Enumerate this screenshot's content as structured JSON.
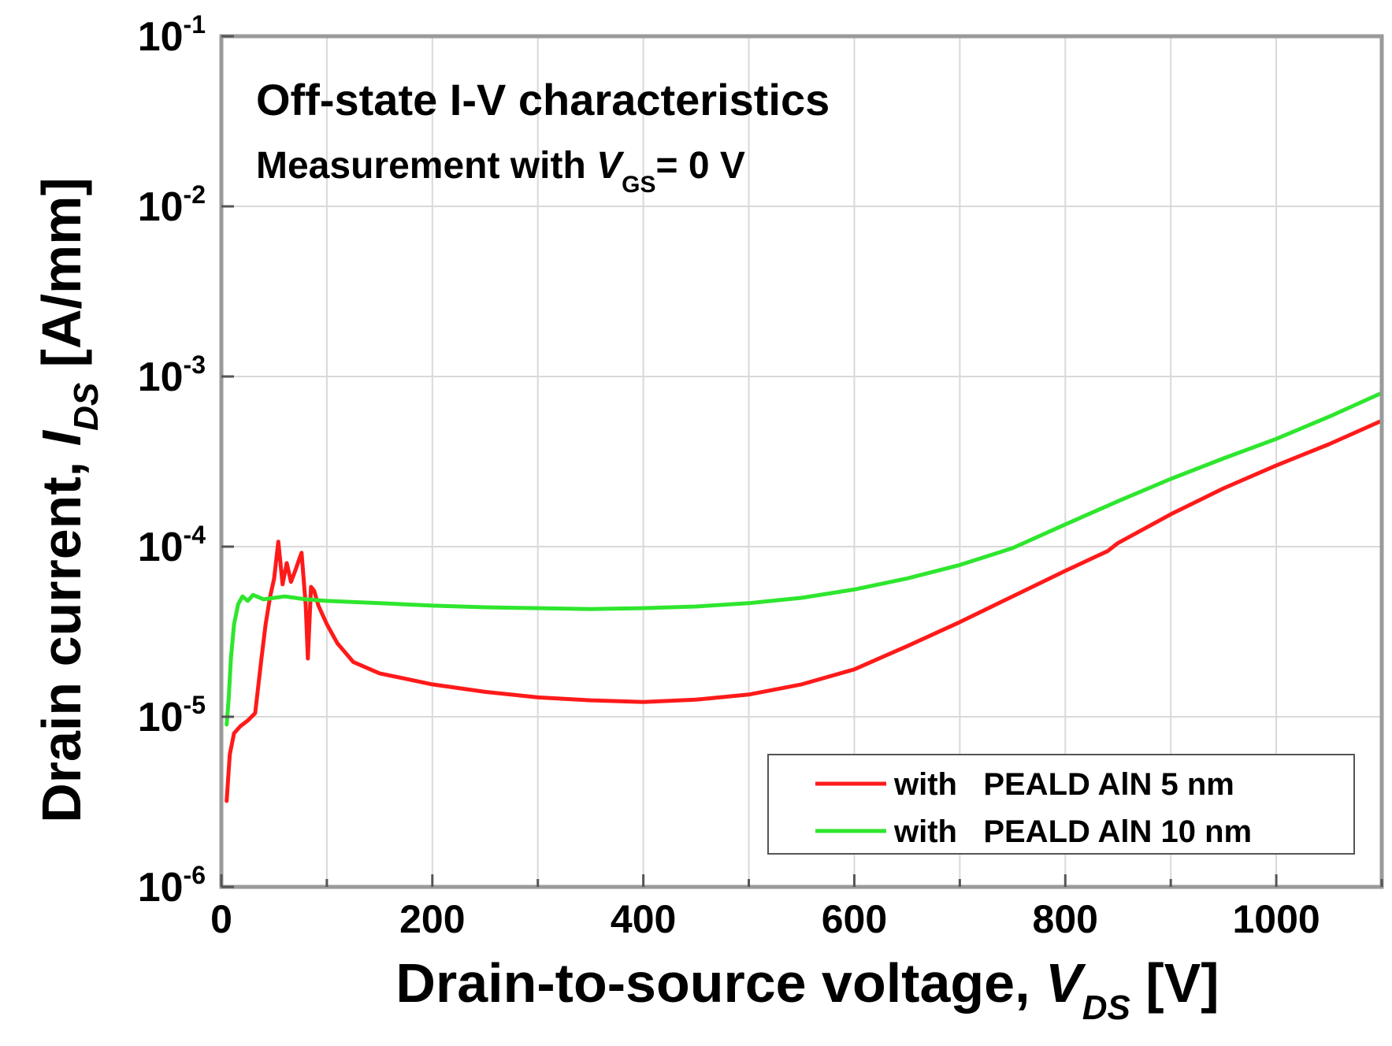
{
  "chart_data": {
    "type": "line",
    "title": "Off-state I-V characteristics",
    "subtitle": {
      "prefix": "Measurement with ",
      "var": "V",
      "sub": "GS",
      "suffix": "= 0 V"
    },
    "xlabel": {
      "prefix": "Drain-to-source voltage, ",
      "var": "V",
      "sub": "DS",
      "suffix": " [V]"
    },
    "ylabel": {
      "prefix": "Drain current, ",
      "var": "I",
      "sub": "DS",
      "suffix": " [A/mm]"
    },
    "xlim": [
      0,
      1100
    ],
    "ylim_exp": [
      -6,
      -1
    ],
    "yscale": "log",
    "x_ticks": [
      {
        "value": 0,
        "label": "0"
      },
      {
        "value": 200,
        "label": "200"
      },
      {
        "value": 400,
        "label": "400"
      },
      {
        "value": 600,
        "label": "600"
      },
      {
        "value": 800,
        "label": "800"
      },
      {
        "value": 1000,
        "label": "1000"
      }
    ],
    "y_ticks": [
      {
        "exp": -1,
        "base": "10",
        "sup": "-1"
      },
      {
        "exp": -2,
        "base": "10",
        "sup": "-2"
      },
      {
        "exp": -3,
        "base": "10",
        "sup": "-3"
      },
      {
        "exp": -4,
        "base": "10",
        "sup": "-4"
      },
      {
        "exp": -5,
        "base": "10",
        "sup": "-5"
      },
      {
        "exp": -6,
        "base": "10",
        "sup": "-6"
      }
    ],
    "grid": true,
    "legend_position": "bottom-right",
    "series": [
      {
        "name": "with   PEALD AlN 5 nm",
        "color": "#ff1a1a",
        "points": [
          [
            5,
            3.2e-06
          ],
          [
            8,
            6e-06
          ],
          [
            12,
            8e-06
          ],
          [
            18,
            8.8e-06
          ],
          [
            25,
            9.5e-06
          ],
          [
            32,
            1.05e-05
          ],
          [
            38,
            2.2e-05
          ],
          [
            42,
            3.5e-05
          ],
          [
            46,
            5e-05
          ],
          [
            50,
            6.5e-05
          ],
          [
            54,
            0.000107
          ],
          [
            58,
            6e-05
          ],
          [
            62,
            8e-05
          ],
          [
            66,
            6.2e-05
          ],
          [
            70,
            7.2e-05
          ],
          [
            74,
            8.5e-05
          ],
          [
            76,
            9.2e-05
          ],
          [
            78,
            6.5e-05
          ],
          [
            80,
            4.5e-05
          ],
          [
            82,
            2.2e-05
          ],
          [
            85,
            5.8e-05
          ],
          [
            88,
            5.5e-05
          ],
          [
            92,
            4.5e-05
          ],
          [
            100,
            3.5e-05
          ],
          [
            110,
            2.7e-05
          ],
          [
            125,
            2.1e-05
          ],
          [
            150,
            1.8e-05
          ],
          [
            200,
            1.55e-05
          ],
          [
            250,
            1.4e-05
          ],
          [
            300,
            1.3e-05
          ],
          [
            350,
            1.25e-05
          ],
          [
            400,
            1.22e-05
          ],
          [
            450,
            1.26e-05
          ],
          [
            500,
            1.35e-05
          ],
          [
            550,
            1.55e-05
          ],
          [
            600,
            1.9e-05
          ],
          [
            650,
            2.6e-05
          ],
          [
            700,
            3.6e-05
          ],
          [
            750,
            5.1e-05
          ],
          [
            800,
            7.2e-05
          ],
          [
            830,
            8.8e-05
          ],
          [
            840,
            9.4e-05
          ],
          [
            850,
            0.000105
          ],
          [
            900,
            0.000155
          ],
          [
            950,
            0.00022
          ],
          [
            1000,
            0.0003
          ],
          [
            1050,
            0.0004
          ],
          [
            1100,
            0.00055
          ]
        ]
      },
      {
        "name": "with   PEALD AlN 10 nm",
        "color": "#2ee62e",
        "points": [
          [
            5,
            9e-06
          ],
          [
            7,
            1.3e-05
          ],
          [
            9,
            2.2e-05
          ],
          [
            12,
            3.5e-05
          ],
          [
            16,
            4.6e-05
          ],
          [
            20,
            5.1e-05
          ],
          [
            25,
            4.8e-05
          ],
          [
            30,
            5.2e-05
          ],
          [
            40,
            4.9e-05
          ],
          [
            60,
            5.1e-05
          ],
          [
            80,
            4.9e-05
          ],
          [
            100,
            4.8e-05
          ],
          [
            150,
            4.65e-05
          ],
          [
            200,
            4.5e-05
          ],
          [
            250,
            4.4e-05
          ],
          [
            300,
            4.35e-05
          ],
          [
            350,
            4.3e-05
          ],
          [
            400,
            4.35e-05
          ],
          [
            450,
            4.45e-05
          ],
          [
            500,
            4.65e-05
          ],
          [
            550,
            5e-05
          ],
          [
            600,
            5.6e-05
          ],
          [
            650,
            6.5e-05
          ],
          [
            700,
            7.8e-05
          ],
          [
            750,
            9.8e-05
          ],
          [
            800,
            0.000135
          ],
          [
            850,
            0.000185
          ],
          [
            900,
            0.00025
          ],
          [
            950,
            0.00033
          ],
          [
            1000,
            0.00043
          ],
          [
            1050,
            0.00058
          ],
          [
            1100,
            0.0008
          ]
        ]
      }
    ]
  }
}
